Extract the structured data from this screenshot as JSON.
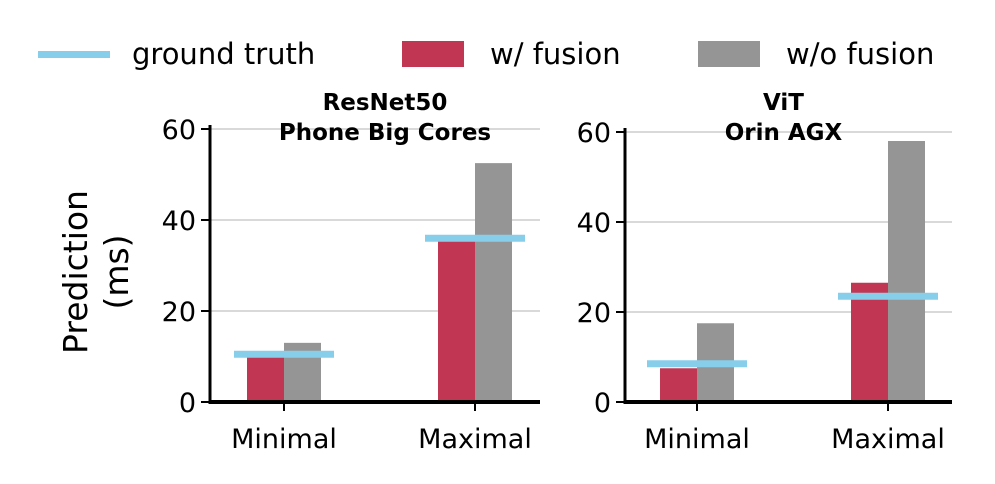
{
  "legend": {
    "ground_truth": "ground truth",
    "with_fusion": "w/ fusion",
    "without_fusion": "w/o fusion"
  },
  "colors": {
    "ground_truth": "#87ceeb",
    "with_fusion": "#c03653",
    "without_fusion": "#959595",
    "grid": "#d9d9d9",
    "axis": "#000000"
  },
  "ylabel_line1": "Prediction",
  "ylabel_line2": "(ms)",
  "chart_data": [
    {
      "type": "bar",
      "title_line1": "ResNet50",
      "title_line2": "Phone Big Cores",
      "categories": [
        "Minimal",
        "Maximal"
      ],
      "series": [
        {
          "name": "w/ fusion",
          "values": [
            10,
            35.5
          ]
        },
        {
          "name": "w/o fusion",
          "values": [
            13,
            52.5
          ]
        }
      ],
      "ground_truth": [
        10.5,
        36
      ],
      "yticks": [
        0,
        20,
        40,
        60
      ],
      "ylim": [
        0,
        60
      ],
      "ylabel": "Prediction (ms)",
      "grid": true
    },
    {
      "type": "bar",
      "title_line1": "ViT",
      "title_line2": "Orin AGX",
      "categories": [
        "Minimal",
        "Maximal"
      ],
      "series": [
        {
          "name": "w/ fusion",
          "values": [
            7.5,
            26.5
          ]
        },
        {
          "name": "w/o fusion",
          "values": [
            17.5,
            58
          ]
        }
      ],
      "ground_truth": [
        8.5,
        23.5
      ],
      "yticks": [
        0,
        20,
        40,
        60
      ],
      "ylim": [
        0,
        60
      ],
      "ylabel": "Prediction (ms)",
      "grid": true
    }
  ]
}
